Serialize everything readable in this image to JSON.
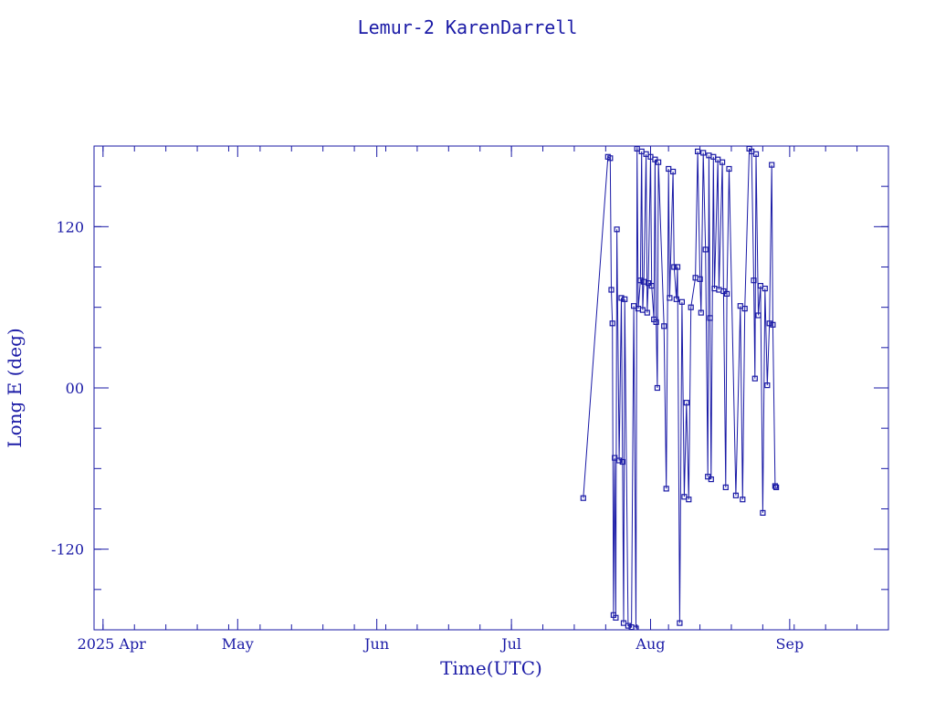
{
  "chart_data": {
    "type": "line",
    "title": "Lemur-2 KarenDarrell",
    "xlabel": "Time(UTC)",
    "ylabel": "Long E (deg)",
    "color": "#1a1aa6",
    "grid": false,
    "legend": "none",
    "xlim": [
      "2025-03-30",
      "2025-09-23"
    ],
    "ylim": [
      -180,
      180
    ],
    "x_ticks": [
      {
        "date": "2025-04-01",
        "label": "2025 Apr"
      },
      {
        "date": "2025-05-01",
        "label": "May"
      },
      {
        "date": "2025-06-01",
        "label": "Jun"
      },
      {
        "date": "2025-07-01",
        "label": "Jul"
      },
      {
        "date": "2025-08-01",
        "label": "Aug"
      },
      {
        "date": "2025-09-01",
        "label": "Sep"
      }
    ],
    "y_ticks": [
      {
        "value": 120,
        "label": "120"
      },
      {
        "value": 0,
        "label": "00"
      },
      {
        "value": -120,
        "label": "-120"
      }
    ],
    "series": [
      {
        "points": [
          [
            "2025-07-17T00:00",
            -82
          ],
          [
            "2025-07-22T12:00",
            172
          ],
          [
            "2025-07-23T00:00",
            171
          ],
          [
            "2025-07-23T06:00",
            73
          ],
          [
            "2025-07-23T12:00",
            48
          ],
          [
            "2025-07-23T18:00",
            -169
          ],
          [
            "2025-07-24T00:00",
            -52
          ],
          [
            "2025-07-24T06:00",
            -171
          ],
          [
            "2025-07-24T12:00",
            118
          ],
          [
            "2025-07-25T00:00",
            -54
          ],
          [
            "2025-07-25T12:00",
            67
          ],
          [
            "2025-07-25T18:00",
            -55
          ],
          [
            "2025-07-26T00:00",
            -175
          ],
          [
            "2025-07-26T06:00",
            66
          ],
          [
            "2025-07-27T00:00",
            -177
          ],
          [
            "2025-07-27T18:00",
            -178
          ],
          [
            "2025-07-28T06:00",
            61
          ],
          [
            "2025-07-28T18:00",
            -179
          ],
          [
            "2025-07-29T00:00",
            178
          ],
          [
            "2025-07-29T06:00",
            59
          ],
          [
            "2025-07-29T18:00",
            80
          ],
          [
            "2025-07-30T00:00",
            176
          ],
          [
            "2025-07-30T06:00",
            58
          ],
          [
            "2025-07-30T12:00",
            79
          ],
          [
            "2025-07-31T00:00",
            174
          ],
          [
            "2025-07-31T06:00",
            56
          ],
          [
            "2025-07-31T12:00",
            78
          ],
          [
            "2025-08-01T00:00",
            172
          ],
          [
            "2025-08-01T06:00",
            76
          ],
          [
            "2025-08-01T18:00",
            51
          ],
          [
            "2025-08-02T00:00",
            170
          ],
          [
            "2025-08-02T06:00",
            49
          ],
          [
            "2025-08-02T12:00",
            0
          ],
          [
            "2025-08-02T18:00",
            168
          ],
          [
            "2025-08-04T00:00",
            46
          ],
          [
            "2025-08-04T12:00",
            -75
          ],
          [
            "2025-08-05T00:00",
            163
          ],
          [
            "2025-08-05T06:00",
            67
          ],
          [
            "2025-08-06T00:00",
            161
          ],
          [
            "2025-08-06T06:00",
            90
          ],
          [
            "2025-08-06T18:00",
            66
          ],
          [
            "2025-08-07T00:00",
            90
          ],
          [
            "2025-08-07T12:00",
            -175
          ],
          [
            "2025-08-08T00:00",
            64
          ],
          [
            "2025-08-08T12:00",
            -81
          ],
          [
            "2025-08-09T00:00",
            -11
          ],
          [
            "2025-08-09T12:00",
            -83
          ],
          [
            "2025-08-10T00:00",
            60
          ],
          [
            "2025-08-11T00:00",
            82
          ],
          [
            "2025-08-11T12:00",
            176
          ],
          [
            "2025-08-12T00:00",
            81
          ],
          [
            "2025-08-12T06:00",
            56
          ],
          [
            "2025-08-12T18:00",
            175
          ],
          [
            "2025-08-13T06:00",
            103
          ],
          [
            "2025-08-13T18:00",
            -66
          ],
          [
            "2025-08-14T00:00",
            173
          ],
          [
            "2025-08-14T06:00",
            52
          ],
          [
            "2025-08-14T12:00",
            -68
          ],
          [
            "2025-08-15T00:00",
            172
          ],
          [
            "2025-08-15T06:00",
            74
          ],
          [
            "2025-08-16T00:00",
            170
          ],
          [
            "2025-08-16T06:00",
            73
          ],
          [
            "2025-08-17T00:00",
            168
          ],
          [
            "2025-08-17T06:00",
            72
          ],
          [
            "2025-08-17T18:00",
            -74
          ],
          [
            "2025-08-18T00:00",
            70
          ],
          [
            "2025-08-18T12:00",
            163
          ],
          [
            "2025-08-20T00:00",
            -80
          ],
          [
            "2025-08-21T00:00",
            61
          ],
          [
            "2025-08-21T12:00",
            -83
          ],
          [
            "2025-08-22T00:00",
            59
          ],
          [
            "2025-08-23T00:00",
            178
          ],
          [
            "2025-08-23T12:00",
            176
          ],
          [
            "2025-08-24T00:00",
            80
          ],
          [
            "2025-08-24T06:00",
            7
          ],
          [
            "2025-08-24T12:00",
            174
          ],
          [
            "2025-08-25T00:00",
            54
          ],
          [
            "2025-08-25T12:00",
            76
          ],
          [
            "2025-08-26T00:00",
            -93
          ],
          [
            "2025-08-26T12:00",
            74
          ],
          [
            "2025-08-27T00:00",
            2
          ],
          [
            "2025-08-27T12:00",
            48
          ],
          [
            "2025-08-28T00:00",
            166
          ],
          [
            "2025-08-28T06:00",
            47
          ],
          [
            "2025-08-28T18:00",
            -73
          ],
          [
            "2025-08-29T00:00",
            -74
          ]
        ]
      }
    ]
  }
}
